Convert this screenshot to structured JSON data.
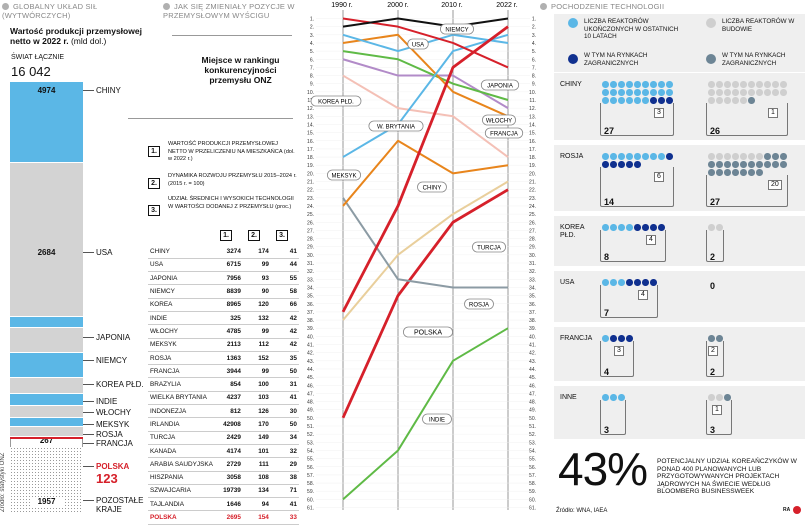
{
  "colors": {
    "light_blue": "#5bb7e6",
    "dark_blue": "#10308f",
    "light_grey": "#cfcfcf",
    "dark_grey": "#6d8595",
    "red": "#d6202a",
    "orange": "#e8851c",
    "green": "#5fba46",
    "beige": "#e9cf9c",
    "pink": "#f4c0b6",
    "purple": "#b28bc8",
    "grey_line": "#8c9ba4"
  },
  "left": {
    "section_title": "GLOBALNY UKŁAD SIŁ (WYTWÓRCZYCH)",
    "subtitle_bold": "Wartość produkcji przemysłowej netto w 2022 r.",
    "subtitle_unit": "(mld dol.)",
    "world_label": "ŚWIAT ŁĄCZNIE",
    "world_value": "16 042",
    "source": "Źródło: statystyki ONZ",
    "segments": [
      {
        "name": "CHINY",
        "value": "4974"
      },
      {
        "name": "USA",
        "value": "2684"
      },
      {
        "name": "JAPONIA",
        "value": "818"
      },
      {
        "name": "NIEMCY",
        "value": "761"
      },
      {
        "name": "KOREA PŁD.",
        "value": "471"
      },
      {
        "name": "INDIE",
        "value": "450"
      },
      {
        "name": "WŁOCHY",
        "value": "322"
      },
      {
        "name": "MEKSYK",
        "value": "316"
      },
      {
        "name": "ROSJA",
        "value": "288"
      },
      {
        "name": "FRANCJA",
        "value": "267"
      },
      {
        "name": "POLSKA",
        "value": "123"
      },
      {
        "name": "POZOSTAŁE KRAJE",
        "value": "1957"
      }
    ]
  },
  "middle": {
    "section_title": "JAK SIĘ ZMIENIAŁY POZYCJE W PRZEMYSŁOWYM WYŚCIGU",
    "place_label": "Miejsce w rankingu konkurencyjności przemysłu ONZ",
    "legend": [
      {
        "num": "1.",
        "text": "WARTOŚĆ PRODUKCJI PRZEMYSŁOWEJ NETTO W PRZELICZENIU NA MIESZKAŃCA (dol. w 2022 r.)"
      },
      {
        "num": "2.",
        "text": "DYNAMIKA ROZWOJU PRZEMYSŁU 2015–2024 r. (2015 r. = 100)"
      },
      {
        "num": "3.",
        "text": "UDZIAŁ ŚREDNICH I WYSOKICH TECHNOLOGII W WARTOŚCI DODANEJ Z PRZEMYSŁU (proc.)"
      }
    ],
    "col_heads": [
      "1.",
      "2.",
      "3."
    ],
    "table": [
      [
        "CHINY",
        "3274",
        "174",
        "41"
      ],
      [
        "USA",
        "6715",
        "99",
        "44"
      ],
      [
        "JAPONIA",
        "7956",
        "93",
        "55"
      ],
      [
        "NIEMCY",
        "8839",
        "90",
        "58"
      ],
      [
        "KOREA",
        "8965",
        "120",
        "66"
      ],
      [
        "INDIE",
        "325",
        "132",
        "42"
      ],
      [
        "WŁOCHY",
        "4785",
        "99",
        "42"
      ],
      [
        "MEKSYK",
        "2113",
        "112",
        "42"
      ],
      [
        "ROSJA",
        "1363",
        "152",
        "35"
      ],
      [
        "FRANCJA",
        "3944",
        "99",
        "50"
      ],
      [
        "BRAZYLIA",
        "854",
        "100",
        "31"
      ],
      [
        "WIELKA BRYTANIA",
        "4237",
        "103",
        "41"
      ],
      [
        "INDONEZJA",
        "812",
        "126",
        "30"
      ],
      [
        "IRLANDIA",
        "42908",
        "170",
        "50"
      ],
      [
        "TURCJA",
        "2429",
        "149",
        "34"
      ],
      [
        "KANADA",
        "4174",
        "101",
        "32"
      ],
      [
        "ARABIA SAUDYJSKA",
        "2729",
        "111",
        "29"
      ],
      [
        "HISZPANIA",
        "3058",
        "108",
        "38"
      ],
      [
        "SZWAJCARIA",
        "19739",
        "134",
        "71"
      ],
      [
        "TAJLANDIA",
        "1646",
        "94",
        "41"
      ],
      [
        "POLSKA",
        "2695",
        "154",
        "33"
      ]
    ]
  },
  "chart_data": {
    "type": "line",
    "title": "JAK SIĘ ZMIENIAŁY POZYCJE W PRZEMYSŁOWYM WYŚCIGU",
    "ylabel": "Miejsce w rankingu konkurencyjności przemysłu ONZ",
    "x": [
      "1990 r.",
      "2000 r.",
      "2010 r.",
      "2022 r."
    ],
    "ylim": [
      1,
      61
    ],
    "series": [
      {
        "name": "NIEMCY",
        "color": "#111111",
        "values": [
          2,
          1,
          2,
          1
        ]
      },
      {
        "name": "JAPONIA",
        "color": "#d6202a",
        "values": [
          1,
          2,
          4,
          7
        ]
      },
      {
        "name": "USA",
        "color": "#5bb7e6",
        "values": [
          3,
          5,
          3,
          4
        ]
      },
      {
        "name": "CHINY",
        "color": "#d6202a",
        "values": [
          37,
          24,
          7,
          2
        ]
      },
      {
        "name": "KOREA PŁD.",
        "color": "#5bb7e6",
        "values": [
          18,
          14,
          5,
          3
        ]
      },
      {
        "name": "FRANCJA",
        "color": "#e8851c",
        "values": [
          4,
          3,
          10,
          13
        ]
      },
      {
        "name": "WŁOCHY",
        "color": "#5fba46",
        "values": [
          5,
          6,
          9,
          11
        ]
      },
      {
        "name": "W. BRYTANIA",
        "color": "#b28bc8",
        "values": [
          6,
          8,
          8,
          12
        ]
      },
      {
        "name": "IRLANDIA",
        "color": "#f4c0b6",
        "values": [
          8,
          12,
          13,
          18
        ]
      },
      {
        "name": "MEKSYK",
        "color": "#e8851c",
        "values": [
          24,
          16,
          20,
          19
        ]
      },
      {
        "name": "ROSJA",
        "color": "#8c9ba4",
        "values": [
          23,
          33,
          34,
          34
        ]
      },
      {
        "name": "TURCJA",
        "color": "#d6202a",
        "values": [
          50,
          35,
          26,
          22
        ]
      },
      {
        "name": "POLSKA",
        "color": "#e9cf9c",
        "values": [
          38,
          30,
          25,
          21
        ]
      },
      {
        "name": "INDIE",
        "color": "#5fba46",
        "values": [
          60,
          54,
          43,
          39
        ]
      }
    ],
    "labels": [
      {
        "text": "NIEMCY",
        "series": "NIEMCY"
      },
      {
        "text": "USA",
        "series": "USA"
      },
      {
        "text": "JAPONIA",
        "series": "JAPONIA"
      },
      {
        "text": "KOREA PŁD.",
        "series": "KOREA PŁD."
      },
      {
        "text": "W. BRYTANIA",
        "series": "W. BRYTANIA"
      },
      {
        "text": "WŁOCHY",
        "series": "WŁOCHY"
      },
      {
        "text": "FRANCJA",
        "series": "FRANCJA"
      },
      {
        "text": "MEKSYK",
        "series": "MEKSYK"
      },
      {
        "text": "CHINY",
        "series": "CHINY"
      },
      {
        "text": "TURCJA",
        "series": "TURCJA"
      },
      {
        "text": "ROSJA",
        "series": "ROSJA"
      },
      {
        "text": "POLSKA",
        "series": "POLSKA"
      },
      {
        "text": "INDIE",
        "series": "INDIE"
      }
    ]
  },
  "right": {
    "section_title": "POCHODZENIE TECHNOLOGII",
    "legend": [
      "LICZBA REAKTORÓW UKOŃCZONYCH W OSTATNICH 10 LATACH",
      "W TYM NA RYNKACH ZAGRANICZNYCH",
      "LICZBA REAKTORÓW W BUDOWIE",
      "W TYM NA RYNKACH ZAGRANICZNYCH"
    ],
    "countries": [
      {
        "name": "CHINY",
        "done": 27,
        "done_foreign": 3,
        "building": 26,
        "building_foreign": 1,
        "done_label": "27",
        "done_sub": "3",
        "building_label": "26",
        "building_sub": "1"
      },
      {
        "name": "ROSJA",
        "done": 14,
        "done_foreign": 6,
        "building": 27,
        "building_foreign": 20,
        "done_label": "14",
        "done_sub": "6",
        "building_label": "27",
        "building_sub": "20"
      },
      {
        "name": "KOREA PŁD.",
        "done": 8,
        "done_foreign": 4,
        "building": 2,
        "building_foreign": 0,
        "done_label": "8",
        "done_sub": "4",
        "building_label": "2",
        "building_sub": ""
      },
      {
        "name": "USA",
        "done": 7,
        "done_foreign": 4,
        "building": 0,
        "building_foreign": 0,
        "done_label": "7",
        "done_sub": "4",
        "building_label": "0",
        "building_sub": ""
      },
      {
        "name": "FRANCJA",
        "done": 4,
        "done_foreign": 3,
        "building": 2,
        "building_foreign": 2,
        "done_label": "4",
        "done_sub": "3",
        "building_label": "2",
        "building_sub": "2"
      },
      {
        "name": "INNE",
        "done": 3,
        "done_foreign": 0,
        "building": 3,
        "building_foreign": 1,
        "done_label": "3",
        "done_sub": "",
        "building_label": "3",
        "building_sub": "1"
      }
    ],
    "big_pct": "43%",
    "pct_text": "POTENCJALNY UDZIAŁ KOREAŃCZYKÓW W PONAD 400 PLANOWANYCH LUB PRZYGOTOWYWANYCH PROJEKTACH JĄDROWYCH NA ŚWIECIE WEDŁUG BLOOMBERG BUSINESSWEEK",
    "source": "Źródło: WNA, IAEA",
    "brand": "RA"
  }
}
